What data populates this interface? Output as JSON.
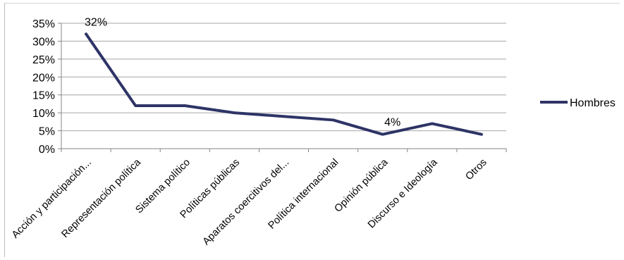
{
  "chart_data": {
    "type": "line",
    "categories": [
      "Acción y participación...",
      "Representación política",
      "Sistema político",
      "Políticas públicas",
      "Aparatos coercitivos del...",
      "Política internacional",
      "Opinión pública",
      "Discurso e Ideología",
      "Otros"
    ],
    "series": [
      {
        "name": "Hombres",
        "values": [
          32,
          12,
          12,
          10,
          9,
          8,
          4,
          7,
          4
        ]
      }
    ],
    "y_ticks": [
      "35%",
      "30%",
      "25%",
      "20%",
      "15%",
      "10%",
      "5%",
      "0%"
    ],
    "ylim": [
      0,
      35
    ],
    "y_unit": "%",
    "data_labels": [
      {
        "index": 0,
        "text": "32%"
      },
      {
        "index": 6,
        "text": "4%"
      }
    ],
    "grid": true,
    "legend": "right",
    "colors": {
      "series": "#2e3466",
      "grid": "#a6a6a6",
      "axis": "#868686"
    }
  }
}
